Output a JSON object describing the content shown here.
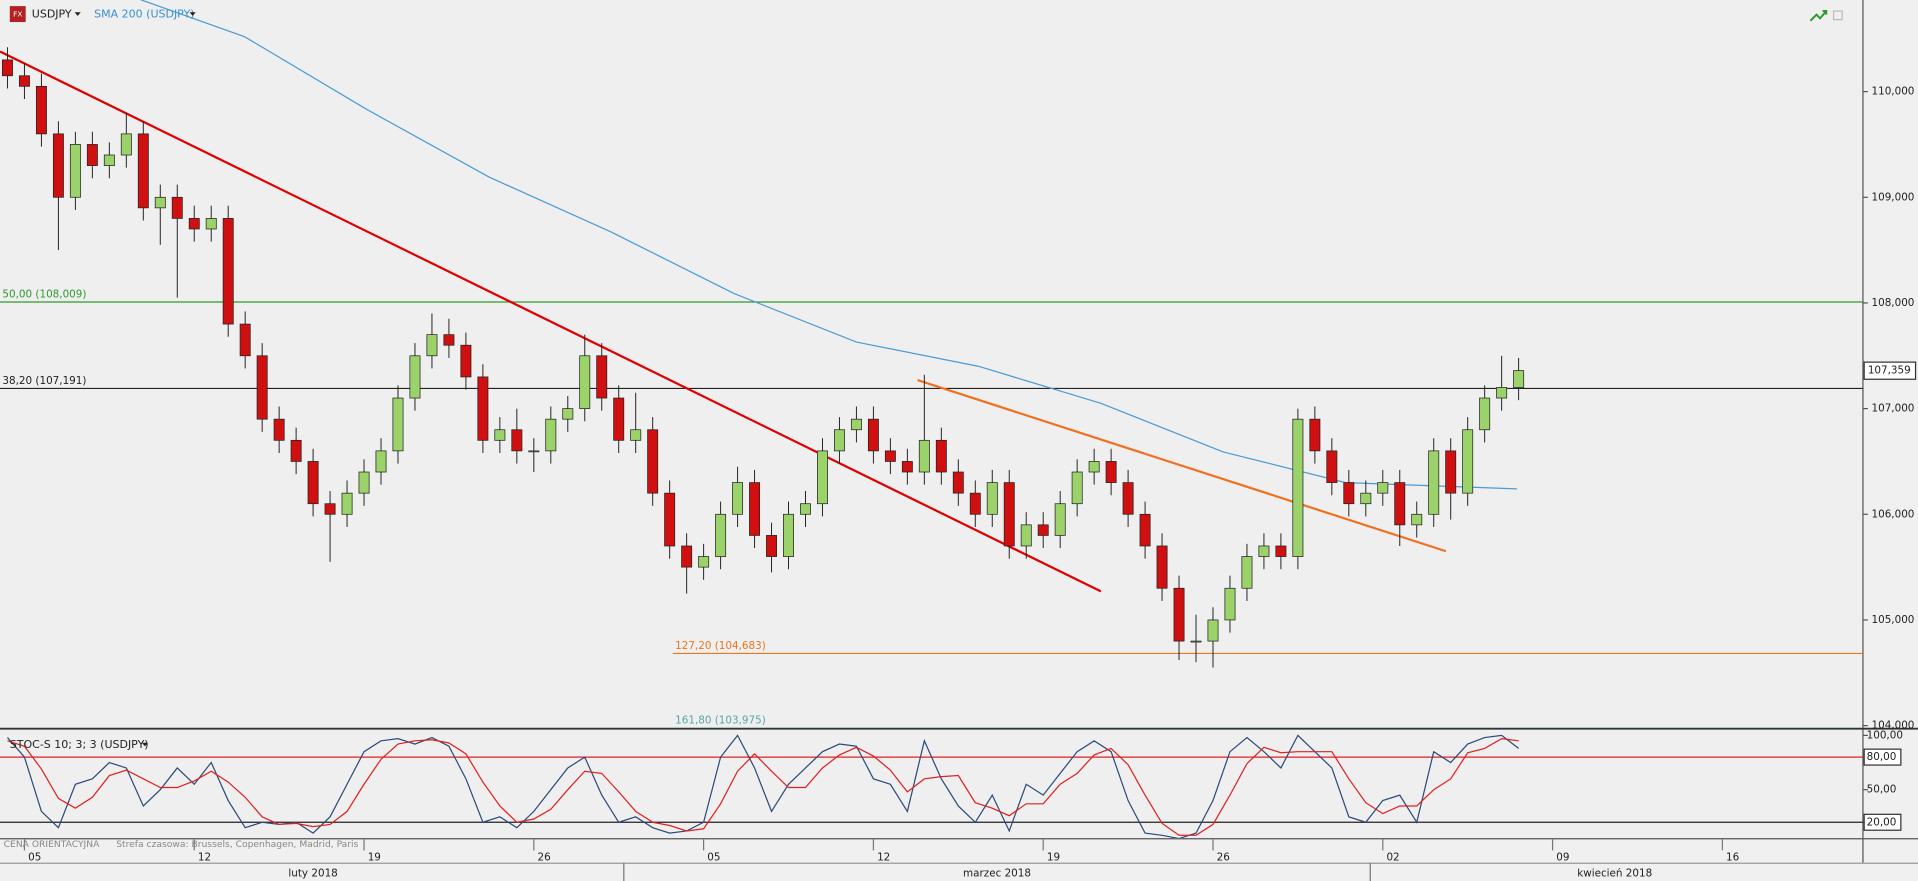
{
  "chart_data": [
    {
      "type": "candlestick",
      "icon_label": "FX",
      "symbol": "USDJPY",
      "up_color": "#9bd36a",
      "down_color": "#d01010",
      "x": [
        -0.5,
        0,
        0.5,
        1,
        1.5,
        2,
        2.5,
        3,
        3.5,
        4,
        4.5,
        5,
        5.5,
        6,
        6.5,
        7,
        7.5,
        8,
        8.5,
        9,
        9.5,
        10,
        10.5,
        11,
        11.5,
        12,
        12.5,
        13,
        13.5,
        14,
        14.5,
        15,
        15.5,
        16,
        16.5,
        17,
        17.5,
        18,
        18.5,
        19,
        19.5,
        20,
        20.5,
        21,
        21.5,
        22,
        22.5,
        23,
        23.5,
        24,
        24.5,
        25,
        25.5,
        26,
        26.5,
        27,
        27.5,
        28,
        28.5,
        29,
        29.5,
        30,
        30.5,
        31,
        31.5,
        32,
        32.5,
        33,
        33.5,
        34,
        34.5,
        35,
        35.5,
        36,
        36.5,
        37,
        37.5,
        38,
        38.5,
        39,
        39.5,
        40,
        40.5,
        41,
        41.5,
        42,
        42.5,
        43,
        43.5,
        44
      ],
      "open": [
        110.3,
        110.15,
        110.05,
        109.6,
        109.0,
        109.5,
        109.3,
        109.4,
        109.6,
        108.9,
        109.0,
        108.8,
        108.7,
        108.8,
        107.8,
        107.5,
        106.9,
        106.7,
        106.5,
        106.1,
        106.0,
        106.2,
        106.4,
        106.6,
        107.1,
        107.5,
        107.7,
        107.6,
        107.3,
        106.7,
        106.8,
        106.6,
        106.6,
        106.9,
        107.0,
        107.5,
        107.1,
        106.7,
        106.8,
        106.2,
        105.7,
        105.5,
        105.6,
        106.0,
        106.3,
        105.8,
        105.6,
        106.0,
        106.1,
        106.6,
        106.8,
        106.9,
        106.6,
        106.5,
        106.4,
        106.7,
        106.4,
        106.2,
        106.0,
        106.3,
        105.7,
        105.9,
        105.8,
        106.1,
        106.4,
        106.5,
        106.3,
        106.0,
        105.7,
        105.3,
        104.8,
        104.8,
        105.0,
        105.3,
        105.6,
        105.7,
        105.6,
        106.9,
        106.6,
        106.3,
        106.1,
        106.2,
        106.3,
        105.9,
        106.0,
        106.6,
        106.2,
        106.8,
        107.1,
        107.2
      ],
      "high": [
        110.42,
        110.27,
        110.17,
        109.72,
        109.62,
        109.62,
        109.52,
        109.8,
        109.72,
        109.12,
        109.12,
        108.92,
        108.92,
        108.92,
        107.92,
        107.62,
        107.02,
        106.82,
        106.62,
        106.22,
        106.32,
        106.52,
        106.72,
        107.22,
        107.62,
        107.9,
        107.85,
        107.72,
        107.42,
        106.92,
        107.0,
        106.72,
        107.02,
        107.12,
        107.7,
        107.62,
        107.22,
        107.15,
        106.92,
        106.32,
        105.82,
        105.72,
        106.12,
        106.45,
        106.42,
        105.92,
        106.12,
        106.22,
        106.72,
        106.92,
        107.02,
        107.02,
        106.72,
        106.62,
        107.32,
        106.82,
        106.52,
        106.32,
        106.42,
        106.42,
        106.02,
        106.02,
        106.22,
        106.52,
        106.62,
        106.62,
        106.42,
        106.12,
        105.82,
        105.42,
        105.05,
        105.12,
        105.42,
        105.72,
        105.82,
        105.82,
        107.0,
        107.02,
        106.72,
        106.42,
        106.32,
        106.42,
        106.42,
        106.12,
        106.72,
        106.72,
        106.92,
        107.22,
        107.5,
        107.48
      ],
      "low": [
        110.03,
        109.93,
        109.48,
        108.5,
        108.88,
        109.18,
        109.18,
        109.28,
        108.78,
        108.55,
        108.05,
        108.58,
        108.58,
        107.68,
        107.38,
        106.78,
        106.58,
        106.38,
        105.98,
        105.55,
        105.88,
        106.08,
        106.28,
        106.48,
        106.98,
        107.38,
        107.48,
        107.18,
        106.58,
        106.58,
        106.48,
        106.4,
        106.48,
        106.78,
        106.88,
        106.98,
        106.58,
        106.58,
        106.08,
        105.58,
        105.25,
        105.38,
        105.48,
        105.88,
        105.68,
        105.45,
        105.48,
        105.88,
        105.98,
        106.48,
        106.68,
        106.48,
        106.38,
        106.28,
        106.28,
        106.28,
        106.08,
        105.88,
        105.88,
        105.58,
        105.58,
        105.68,
        105.68,
        105.98,
        106.28,
        106.18,
        105.88,
        105.58,
        105.18,
        104.62,
        104.6,
        104.55,
        104.88,
        105.18,
        105.48,
        105.48,
        105.48,
        106.48,
        106.18,
        105.98,
        105.98,
        106.08,
        105.7,
        105.78,
        105.88,
        105.95,
        106.08,
        106.68,
        106.98,
        107.08
      ],
      "close": [
        110.15,
        110.05,
        109.6,
        109.0,
        109.5,
        109.3,
        109.4,
        109.6,
        108.9,
        109.0,
        108.8,
        108.7,
        108.8,
        107.8,
        107.5,
        106.9,
        106.7,
        106.5,
        106.1,
        106.0,
        106.2,
        106.4,
        106.6,
        107.1,
        107.5,
        107.7,
        107.6,
        107.3,
        106.7,
        106.8,
        106.6,
        106.6,
        106.9,
        107.0,
        107.5,
        107.1,
        106.7,
        106.8,
        106.2,
        105.7,
        105.5,
        105.6,
        106.0,
        106.3,
        105.8,
        105.6,
        106.0,
        106.1,
        106.6,
        106.8,
        106.9,
        106.6,
        106.5,
        106.4,
        106.7,
        106.4,
        106.2,
        106.0,
        106.3,
        105.7,
        105.9,
        105.8,
        106.1,
        106.4,
        106.5,
        106.3,
        106.0,
        105.7,
        105.3,
        104.8,
        104.8,
        105.0,
        105.3,
        105.6,
        105.7,
        105.6,
        106.9,
        106.6,
        106.3,
        106.1,
        106.2,
        106.3,
        105.9,
        106.0,
        106.6,
        106.2,
        106.8,
        107.1,
        107.2,
        107.36
      ],
      "sma": {
        "name": "SMA 200 (USDJPY)",
        "color": "#4a9bd5",
        "x": [
          3.42,
          6.48,
          10.09,
          13.69,
          17.29,
          20.89,
          24.5,
          28.1,
          31.7,
          35.3,
          38.9,
          43.95
        ],
        "values": [
          110.87,
          110.52,
          109.83,
          109.19,
          108.67,
          108.09,
          107.63,
          107.4,
          107.05,
          106.59,
          106.3,
          106.24
        ]
      },
      "trendlines": [
        {
          "color": "#e00000",
          "x": [
            -0.72,
            31.7
          ],
          "values": [
            110.38,
            105.27
          ]
        },
        {
          "color": "#f07020",
          "x": [
            26.3,
            41.86
          ],
          "values": [
            107.27,
            105.65
          ]
        }
      ],
      "levels": [
        {
          "value": 108.009,
          "label": "50,00 (108,009)",
          "color": "#2e9a2e",
          "from_x": -0.72
        },
        {
          "value": 107.191,
          "label": "38,20 (107,191)",
          "color": "#222222",
          "from_x": -0.72
        },
        {
          "value": 104.683,
          "label": "127,20 (104,683)",
          "color": "#e87722",
          "from_x": 19.09
        },
        {
          "value": 103.975,
          "label": "161,80 (103,975)",
          "color": "#5aa6a6",
          "from_x": 19.09
        }
      ],
      "last_price": {
        "value": 107.359,
        "label": "107,359"
      },
      "xlim": [
        -0.72,
        54.14
      ],
      "ylim": [
        103.977,
        110.867
      ],
      "yticks": [
        {
          "value": 104,
          "label": "104,000"
        },
        {
          "value": 105,
          "label": "105,000"
        },
        {
          "value": 106,
          "label": "106,000"
        },
        {
          "value": 107,
          "label": "107,000"
        },
        {
          "value": 108,
          "label": "108,000"
        },
        {
          "value": 109,
          "label": "109,000"
        },
        {
          "value": 110,
          "label": "110,000"
        }
      ],
      "xticks": [
        {
          "value": 0,
          "label": "05"
        },
        {
          "value": 5,
          "label": "12"
        },
        {
          "value": 10,
          "label": "19"
        },
        {
          "value": 15,
          "label": "26"
        },
        {
          "value": 20,
          "label": "05"
        },
        {
          "value": 25,
          "label": "12"
        },
        {
          "value": 30,
          "label": "19"
        },
        {
          "value": 35,
          "label": "26"
        },
        {
          "value": 40,
          "label": "02"
        },
        {
          "value": 45,
          "label": "09"
        },
        {
          "value": 50,
          "label": "16"
        }
      ],
      "months": [
        {
          "value": 8.5,
          "label": "luty 2018"
        },
        {
          "value": 28.64,
          "label": "marzec 2018"
        },
        {
          "value": 46.83,
          "label": "kwiecień 2018"
        }
      ],
      "month_breaks": [
        17.65,
        39.63
      ]
    },
    {
      "type": "line",
      "title": "STOC-S 10; 3; 3 (USDJPY)",
      "note": "CENA ORIENTACYJNA",
      "timezone": "Strefa czasowa: Brussels, Copenhagen, Madrid, Paris",
      "x": [
        -0.5,
        0,
        0.5,
        1,
        1.5,
        2,
        2.5,
        3,
        3.5,
        4,
        4.5,
        5,
        5.5,
        6,
        6.5,
        7,
        7.5,
        8,
        8.5,
        9,
        9.5,
        10,
        10.5,
        11,
        11.5,
        12,
        12.5,
        13,
        13.5,
        14,
        14.5,
        15,
        15.5,
        16,
        16.5,
        17,
        17.5,
        18,
        18.5,
        19,
        19.5,
        20,
        20.5,
        21,
        21.5,
        22,
        22.5,
        23,
        23.5,
        24,
        24.5,
        25,
        25.5,
        26,
        26.5,
        27,
        27.5,
        28,
        28.5,
        29,
        29.5,
        30,
        30.5,
        31,
        31.5,
        32,
        32.5,
        33,
        33.5,
        34,
        34.5,
        35,
        35.5,
        36,
        36.5,
        37,
        37.5,
        38,
        38.5,
        39,
        39.5,
        40,
        40.5,
        41,
        41.5,
        42,
        42.5,
        43,
        43.5,
        44
      ],
      "series": [
        {
          "color": "#2c4a7a",
          "values": [
            98,
            80,
            30,
            15,
            55,
            60,
            75,
            70,
            35,
            50,
            70,
            55,
            75,
            40,
            15,
            20,
            18,
            20,
            10,
            25,
            55,
            85,
            95,
            97,
            92,
            98,
            90,
            60,
            20,
            25,
            15,
            30,
            50,
            70,
            80,
            45,
            20,
            25,
            15,
            10,
            12,
            20,
            80,
            100,
            70,
            30,
            55,
            70,
            85,
            92,
            90,
            60,
            55,
            30,
            95,
            60,
            35,
            20,
            45,
            12,
            55,
            45,
            65,
            85,
            95,
            85,
            40,
            10,
            8,
            5,
            10,
            40,
            85,
            98,
            85,
            70,
            100,
            85,
            70,
            25,
            20,
            40,
            45,
            20,
            85,
            75,
            92,
            98,
            100,
            88
          ]
        },
        {
          "color": "#e02020",
          "values": [
            95,
            90,
            69,
            42,
            33,
            43,
            63,
            68,
            60,
            52,
            52,
            58,
            67,
            57,
            43,
            25,
            18,
            19,
            16,
            18,
            30,
            55,
            78,
            92,
            95,
            96,
            93,
            83,
            57,
            35,
            20,
            23,
            32,
            50,
            67,
            65,
            48,
            30,
            20,
            17,
            12,
            14,
            37,
            67,
            83,
            67,
            52,
            52,
            70,
            82,
            89,
            81,
            68,
            48,
            60,
            62,
            63,
            38,
            33,
            26,
            37,
            37,
            55,
            65,
            82,
            88,
            73,
            45,
            19,
            8,
            8,
            18,
            45,
            74,
            89,
            84,
            85,
            85,
            85,
            60,
            38,
            28,
            35,
            35,
            50,
            60,
            84,
            88,
            97,
            95
          ]
        }
      ],
      "levels": [
        {
          "value": 80,
          "color": "#e02020"
        },
        {
          "value": 20,
          "color": "#222222"
        }
      ],
      "xlim": [
        -0.72,
        54.14
      ],
      "ylim": [
        5.35,
        104.5
      ],
      "yticks": [
        {
          "value": 100,
          "label": "100,00"
        },
        {
          "value": 80,
          "label": "80,00"
        },
        {
          "value": 50,
          "label": "50,00"
        },
        {
          "value": 20,
          "label": "20,00"
        }
      ]
    }
  ]
}
